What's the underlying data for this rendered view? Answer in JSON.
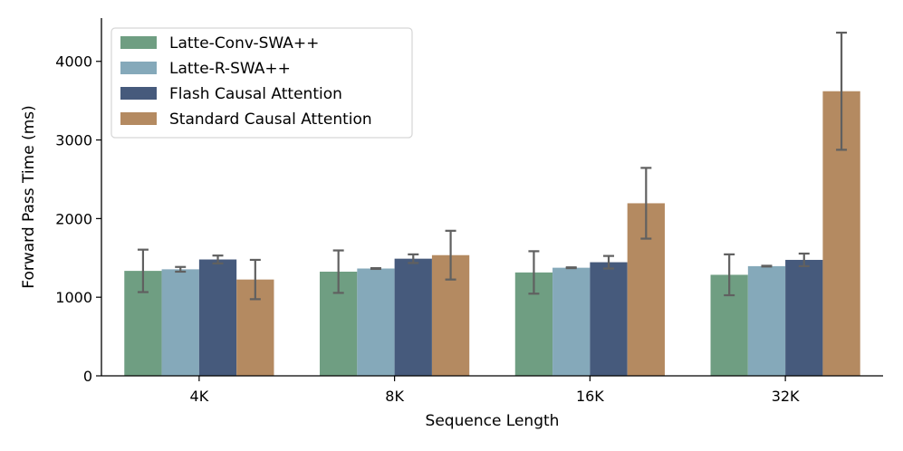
{
  "chart_data": {
    "type": "bar",
    "title": "",
    "xlabel": "Sequence Length",
    "ylabel": "Forward Pass Time (ms)",
    "categories": [
      "4K",
      "8K",
      "16K",
      "32K"
    ],
    "ylim": [
      0,
      4550
    ],
    "yticks": [
      0,
      1000,
      2000,
      3000,
      4000
    ],
    "ytick_labels": [
      "0",
      "1000",
      "2000",
      "3000",
      "4000"
    ],
    "grid": false,
    "legend_position": "top-left",
    "series": [
      {
        "name": "Latte-Conv-SWA++",
        "color": "#6f9e82",
        "values": [
          1335,
          1325,
          1315,
          1285
        ],
        "error": [
          270,
          270,
          270,
          260
        ]
      },
      {
        "name": "Latte-R-SWA++",
        "color": "#85a9ba",
        "values": [
          1355,
          1365,
          1375,
          1395
        ],
        "error": [
          30,
          5,
          5,
          5
        ]
      },
      {
        "name": "Flash Causal Attention",
        "color": "#465a7c",
        "values": [
          1480,
          1490,
          1445,
          1475
        ],
        "error": [
          50,
          55,
          80,
          80
        ]
      },
      {
        "name": "Standard Causal Attention",
        "color": "#b48a61",
        "values": [
          1225,
          1535,
          2195,
          3620
        ],
        "error": [
          250,
          310,
          450,
          745
        ]
      }
    ],
    "error_bar_color": "#606060"
  }
}
